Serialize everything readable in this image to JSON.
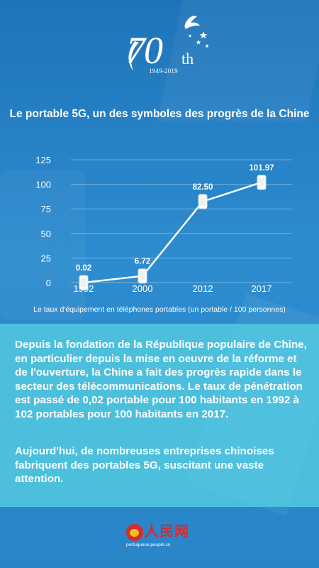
{
  "logo": {
    "number": "70",
    "suffix": "th",
    "years": "1949-2019"
  },
  "title": "Le portable 5G, un des symboles des progrès de la Chine",
  "chart_data": {
    "type": "line",
    "x": [
      "1992",
      "2000",
      "2012",
      "2017"
    ],
    "values": [
      0.02,
      6.72,
      82.5,
      101.97
    ],
    "value_labels": [
      "0.02",
      "6.72",
      "82.50",
      "101.97"
    ],
    "yticks": [
      "0",
      "25",
      "50",
      "75",
      "100",
      "125"
    ],
    "ylim": [
      0,
      125
    ],
    "grid": true,
    "marker": "phone-icon",
    "color": "#ffffff"
  },
  "caption": "Le taux d'équipement en téléphones portables (un portable / 100 personnes)",
  "paragraphs": [
    "Depuis la fondation de la République populaire de Chine, en particulier depuis la mise en oeuvre de la réforme et de l'ouverture, la Chine a fait des progrès rapide dans le secteur des télécommunications. Le taux de pénétration est passé de 0,02 portable pour 100 habitants en 1992 à 102 portables pour 100 habitants en 2017.",
    "Aujourd'hui, de nombreuses entreprises chinoises fabriquent des portables 5G, suscitant une vaste attention."
  ],
  "footer": {
    "brand": "人民网",
    "url": "portuguese.people.cn"
  },
  "colors": {
    "background": "#2a86c9",
    "panel": "#56cee2",
    "brand_red": "#d9292f"
  }
}
